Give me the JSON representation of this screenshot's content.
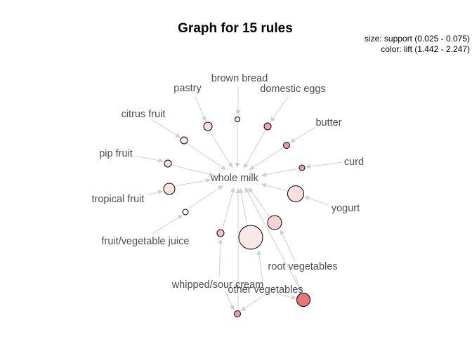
{
  "title": "Graph for 15 rules",
  "legend": {
    "size": "size: support (0.025 - 0.075)",
    "color": "color: lift (1.442 - 2.247)"
  },
  "items": {
    "whole_milk": "whole milk",
    "brown_bread": "brown bread",
    "pastry": "pastry",
    "domestic_eggs": "domestic eggs",
    "citrus_fruit": "citrus fruit",
    "butter": "butter",
    "pip_fruit": "pip fruit",
    "curd": "curd",
    "tropical_fruit": "tropical fruit",
    "yogurt": "yogurt",
    "fruit_vegetable_juice": "fruit/vegetable juice",
    "root_vegetables": "root vegetables",
    "whipped_sour_cream": "whipped/sour cream",
    "other_vegetables": "other vegetables"
  },
  "colors": {
    "edge": "#cfcfcf",
    "label": "#4d4d4d",
    "low_lift": "#f7e8e8",
    "high_lift": "#ef7a7a"
  }
}
